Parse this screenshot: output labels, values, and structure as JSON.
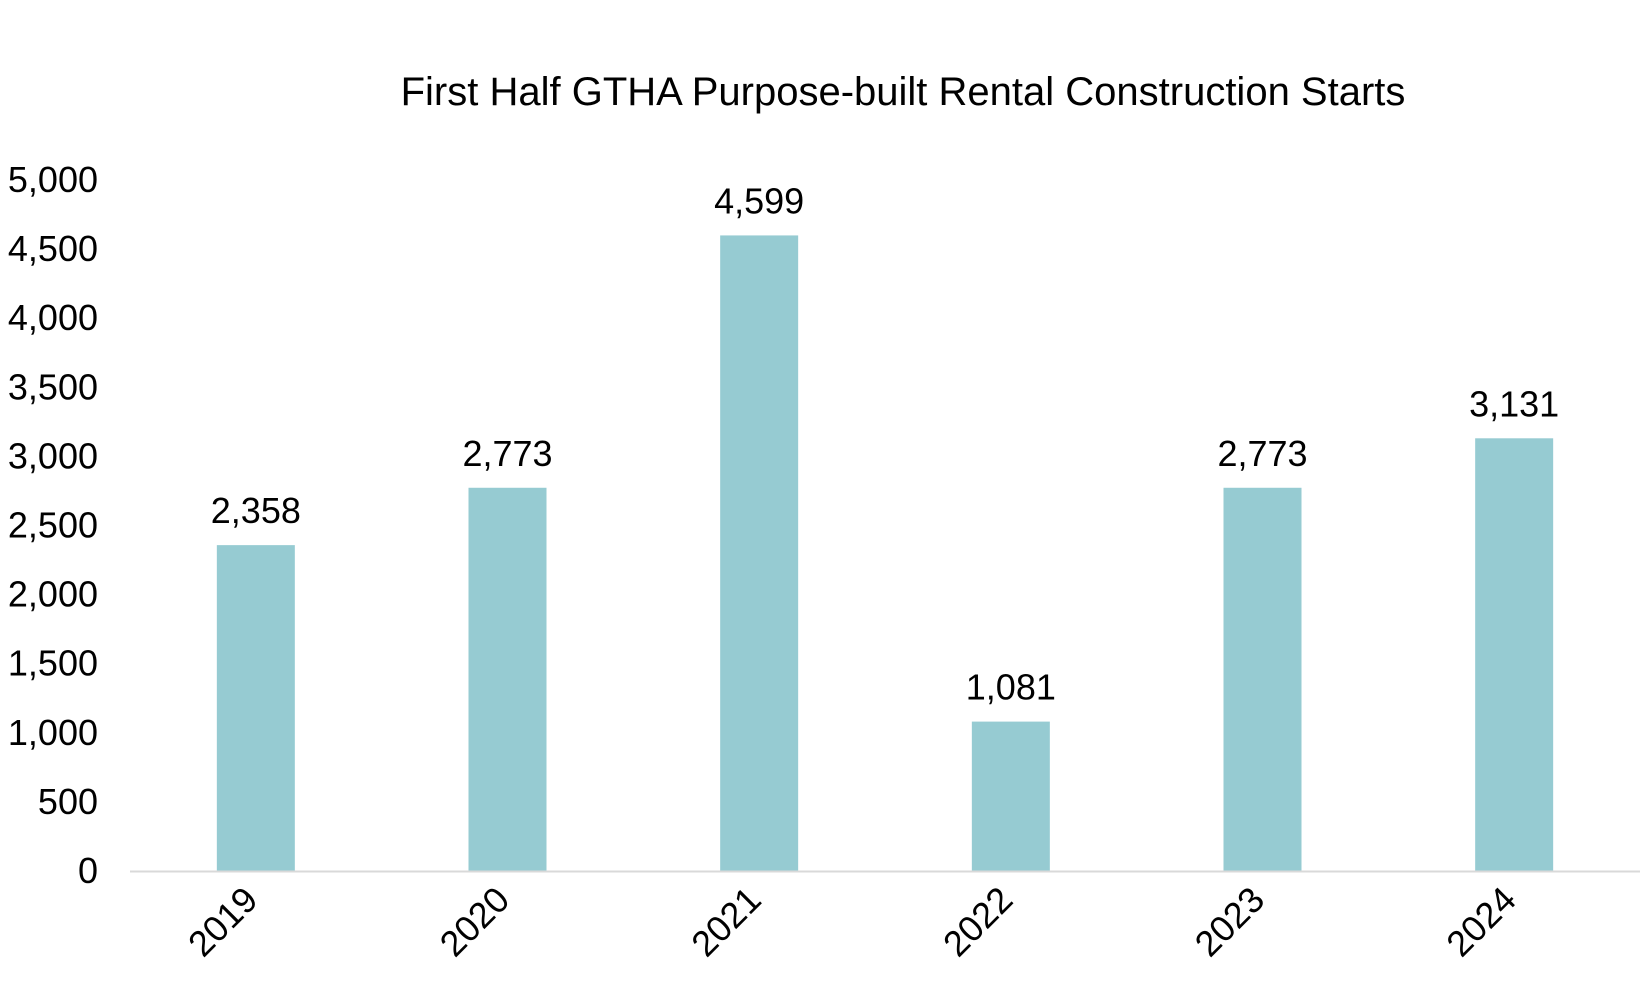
{
  "chart_data": {
    "type": "bar",
    "title": "First Half GTHA Purpose-built Rental Construction Starts",
    "categories": [
      "2019",
      "2020",
      "2021",
      "2022",
      "2023",
      "2024"
    ],
    "values": [
      2358,
      2773,
      4599,
      1081,
      2773,
      3131
    ],
    "value_labels": [
      "2,358",
      "2,773",
      "4,599",
      "1,081",
      "2,773",
      "3,131"
    ],
    "ylim": [
      0,
      5000
    ],
    "yticks": [
      0,
      500,
      1000,
      1500,
      2000,
      2500,
      3000,
      3500,
      4000,
      4500,
      5000
    ],
    "ytick_labels": [
      "0",
      "500",
      "1,000",
      "1,500",
      "2,000",
      "2,500",
      "3,000",
      "3,500",
      "4,000",
      "4,500",
      "5,000"
    ],
    "xlabel": "",
    "ylabel": "",
    "grid": false,
    "legend": "none",
    "colors": {
      "bar": "#96cbd2",
      "axis": "#d9d9d9",
      "text": "#000000"
    }
  }
}
